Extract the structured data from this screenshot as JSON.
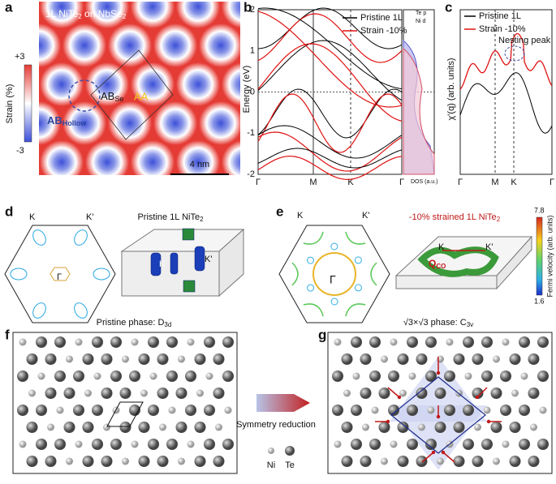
{
  "panels": {
    "a": {
      "label": "a",
      "title": [
        "1L NiTe",
        "2",
        " on NbSe",
        "2"
      ],
      "cbar_max": "+3",
      "cbar_min": "-3",
      "cbar_label": "Strain (%)",
      "ab_se": [
        "AB",
        "Se"
      ],
      "aa": "AA",
      "ab_hollow": [
        "AB",
        "Hollow"
      ],
      "scale": "4 nm"
    },
    "b": {
      "label": "b",
      "yticks": [
        2,
        1,
        0,
        -1,
        -2
      ],
      "ylabel": "Energy (eV)",
      "kpath": [
        "Γ",
        "M",
        "K",
        "Γ"
      ],
      "legend": [
        "Pristine 1L",
        "Strain -10%"
      ],
      "dos_legend": [
        "Te p",
        "Ni d"
      ],
      "dos_label": "DOS (a.u.)"
    },
    "c": {
      "label": "c",
      "legend": [
        "Pristine 1L",
        "Strain -10%"
      ],
      "annotation": "Nesting peak",
      "ylabel": "χ'(q) (arb. units)",
      "kpath": [
        "Γ",
        "M",
        "K",
        "Γ"
      ]
    },
    "d": {
      "label": "d",
      "k": "K",
      "k_prime": "K'",
      "gamma": "Γ",
      "title": [
        "Pristine 1L NiTe",
        "2"
      ],
      "box_k": "K",
      "box_k_prime": "K'"
    },
    "e": {
      "label": "e",
      "k": "K",
      "k_prime": "K'",
      "gamma": "Γ",
      "title": [
        "-10% strained 1L NiTe",
        "2"
      ],
      "box_k": "K",
      "box_k_prime": "K'",
      "q": [
        "Q",
        "CO"
      ],
      "cbar_max": 7.8,
      "cbar_min": 1.6,
      "cbar_label": "Fermi velocity (arb. units)"
    },
    "f": {
      "label": "f",
      "title": [
        "Pristine phase: D",
        "3d"
      ],
      "arrow_label": "Symmetry reduction",
      "legend": [
        "Ni",
        "Te"
      ]
    },
    "g": {
      "label": "g",
      "title": [
        "√3×√3 phase: C",
        "3v"
      ]
    }
  }
}
